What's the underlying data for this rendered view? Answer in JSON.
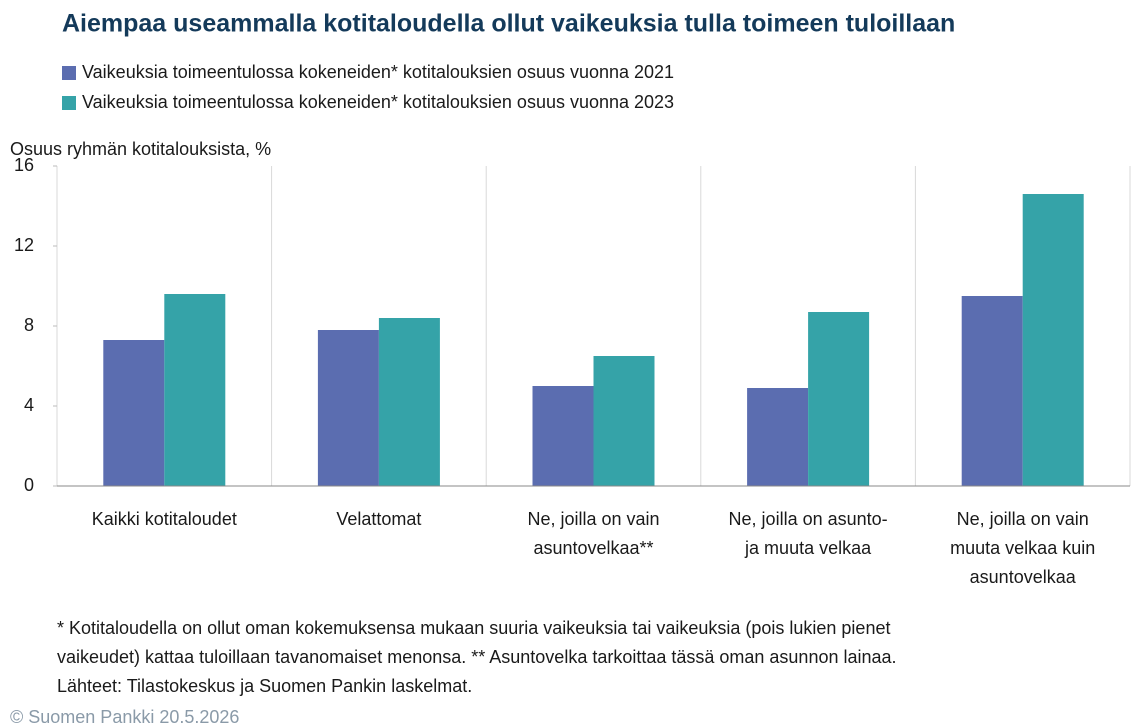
{
  "chart_data": {
    "type": "bar",
    "title": "Aiempaa useammalla kotitaloudella ollut vaikeuksia tulla toimeen tuloillaan",
    "y_label": "Osuus ryhmän kotitalouksista, %",
    "categories": [
      [
        "Kaikki kotitaloudet"
      ],
      [
        "Velattomat"
      ],
      [
        "Ne, joilla on vain",
        "asuntovelkaa**"
      ],
      [
        "Ne, joilla on asunto-",
        "ja muuta velkaa"
      ],
      [
        "Ne, joilla on vain",
        "muuta velkaa kuin",
        "asuntovelkaa"
      ]
    ],
    "series": [
      {
        "name": "Vaikeuksia toimeentulossa kokeneiden* kotitalouksien osuus vuonna 2021",
        "color": "#5b6db0",
        "values": [
          7.3,
          7.8,
          5.0,
          4.9,
          9.5
        ]
      },
      {
        "name": "Vaikeuksia toimeentulossa kokeneiden* kotitalouksien osuus vuonna 2023",
        "color": "#35a3a8",
        "values": [
          9.6,
          8.4,
          6.5,
          8.7,
          14.6
        ]
      }
    ],
    "ylim": [
      0,
      16
    ],
    "yticks": [
      0,
      4,
      8,
      12,
      16
    ],
    "notes": [
      "* Kotitaloudella on ollut oman kokemuksensa mukaan suuria vaikeuksia tai vaikeuksia (pois lukien pienet",
      "vaikeudet) kattaa tuloillaan tavanomaiset menonsa. ** Asuntovelka tarkoittaa tässä oman asunnon lainaa.",
      "Lähteet: Tilastokeskus ja Suomen Pankin laskelmat."
    ],
    "copyright": "© Suomen Pankki 20.5.2026"
  }
}
